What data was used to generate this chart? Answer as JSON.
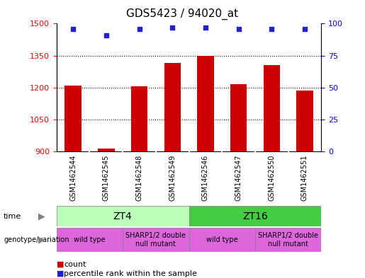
{
  "title": "GDS5423 / 94020_at",
  "samples": [
    "GSM1462544",
    "GSM1462545",
    "GSM1462548",
    "GSM1462549",
    "GSM1462546",
    "GSM1462547",
    "GSM1462550",
    "GSM1462551"
  ],
  "bar_values": [
    1210,
    915,
    1205,
    1315,
    1350,
    1215,
    1305,
    1185
  ],
  "percentile_values": [
    96,
    91,
    96,
    97,
    97,
    96,
    96,
    96
  ],
  "ylim_left": [
    900,
    1500
  ],
  "ylim_right": [
    0,
    100
  ],
  "yticks_left": [
    900,
    1050,
    1200,
    1350,
    1500
  ],
  "yticks_right": [
    0,
    25,
    50,
    75,
    100
  ],
  "bar_color": "#cc0000",
  "scatter_color": "#2222cc",
  "time_labels": [
    "ZT4",
    "ZT16"
  ],
  "time_color_light": "#bbffbb",
  "time_color_dark": "#44cc44",
  "genotype_labels": [
    "wild type",
    "SHARP1/2 double\nnull mutant",
    "wild type",
    "SHARP1/2 double\nnull mutant"
  ],
  "genotype_color": "#dd66dd",
  "sample_bg_color": "#cccccc",
  "legend_count_color": "#cc0000",
  "legend_percentile_color": "#2222cc"
}
